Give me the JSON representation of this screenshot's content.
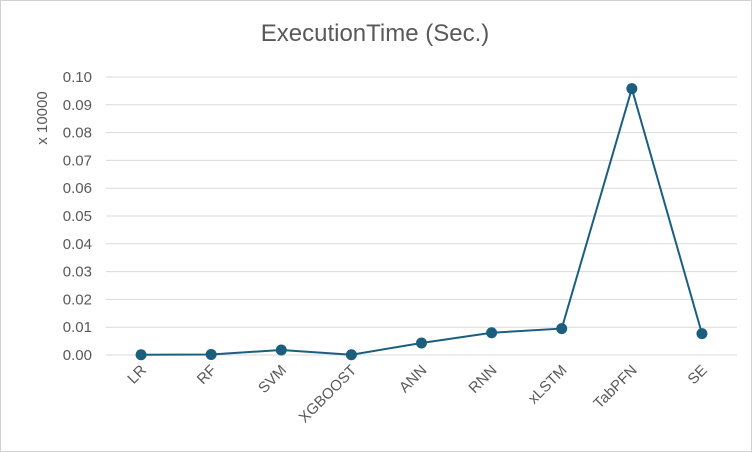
{
  "chart_data": {
    "type": "line",
    "title": "ExecutionTime (Sec.)",
    "ylabel": "x 10000",
    "xlabel": "",
    "categories": [
      "LR",
      "RF",
      "SVM",
      "XGBOOST",
      "ANN",
      "RNN",
      "xLSTM",
      "TabPFN",
      "SE"
    ],
    "series": [
      {
        "values": [
          0.0001,
          0.0002,
          0.0018,
          0.0001,
          0.0043,
          0.008,
          0.0095,
          0.0958,
          0.0077
        ]
      }
    ],
    "ylim": [
      0,
      0.1
    ],
    "yticks": [
      "0.00",
      "0.01",
      "0.02",
      "0.03",
      "0.04",
      "0.05",
      "0.06",
      "0.07",
      "0.08",
      "0.09",
      "0.10"
    ],
    "grid": true,
    "legend": "none",
    "color": "#1b5e7e"
  }
}
